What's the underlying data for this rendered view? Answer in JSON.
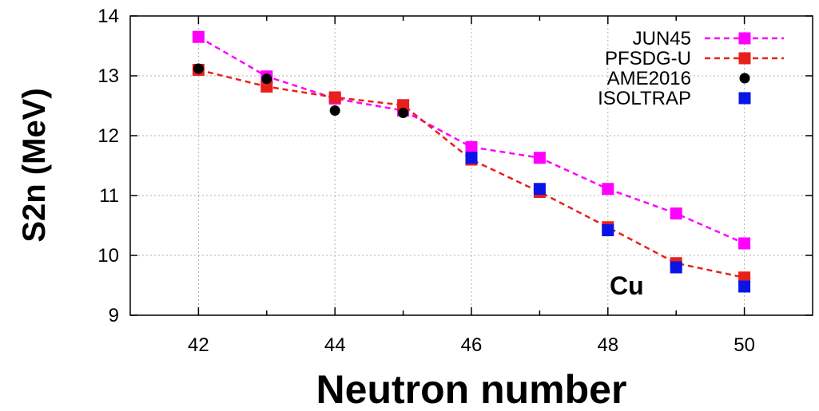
{
  "chart_data": {
    "type": "line",
    "xlabel": "Neutron number",
    "ylabel": "S2n (MeV)",
    "xlim": [
      41,
      51
    ],
    "ylim": [
      9,
      14
    ],
    "xticks": [
      42,
      44,
      46,
      48,
      50
    ],
    "yticks": [
      9,
      10,
      11,
      12,
      13,
      14
    ],
    "grid": true,
    "legend_position": "top-right",
    "annotation": "Cu",
    "series": [
      {
        "name": "JUN45",
        "color": "#ff00ff",
        "line": "dashed",
        "marker": "square",
        "x": [
          42,
          43,
          44,
          45,
          46,
          47,
          48,
          49,
          50
        ],
        "y": [
          13.65,
          12.99,
          12.62,
          12.42,
          11.81,
          11.63,
          11.11,
          10.7,
          10.2
        ]
      },
      {
        "name": "PFSDG-U",
        "color": "#e8201c",
        "line": "dashed",
        "marker": "square",
        "x": [
          42,
          43,
          44,
          45,
          46,
          47,
          48,
          49,
          50
        ],
        "y": [
          13.1,
          12.82,
          12.64,
          12.51,
          11.6,
          11.06,
          10.47,
          9.87,
          9.63
        ]
      },
      {
        "name": "AME2016",
        "color": "#000000",
        "line": "none",
        "marker": "circle",
        "x": [
          42,
          43,
          44,
          45
        ],
        "y": [
          13.12,
          12.95,
          12.42,
          12.38
        ]
      },
      {
        "name": "ISOLTRAP",
        "color": "#0a14e6",
        "line": "none",
        "marker": "square",
        "x": [
          46,
          47,
          48,
          49,
          50
        ],
        "y": [
          11.63,
          11.11,
          10.42,
          9.8,
          9.48
        ]
      }
    ]
  }
}
